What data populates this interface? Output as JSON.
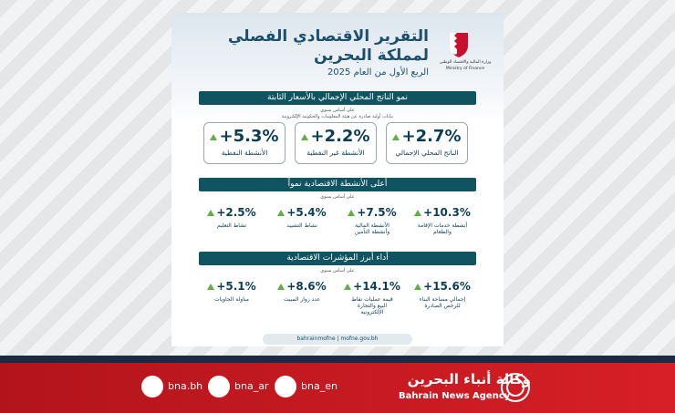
{
  "header": {
    "title_line1": "التقرير الاقتصادي الفصلي",
    "title_line2": "لمملكة البحرين",
    "subtitle": "الربع الأول من العام 2025",
    "ministry_ar": "وزارة المالية والاقتصاد الوطني",
    "ministry_en": "Ministry of Finance"
  },
  "sections": [
    {
      "title": "نمو الناتج المحلي الإجمالي بالأسعار الثابتة",
      "note": "على أساس سنوي",
      "source": "بيانات أولية صادرة عن هيئة المعلومات والحكومة الإلكترونية",
      "stats": [
        {
          "value": "+2.7%",
          "label": "الناتج المحلي الإجمالي"
        },
        {
          "value": "+2.2%",
          "label": "الأنشطة غير النفطية"
        },
        {
          "value": "+5.3%",
          "label": "الأنشطة النفطية"
        }
      ]
    },
    {
      "title": "أعلى الأنشطة الاقتصادية نمواً",
      "note": "على أساس سنوي",
      "stats": [
        {
          "value": "+10.3%",
          "label": "أنشطة خدمات الإقامة والطعام"
        },
        {
          "value": "+7.5%",
          "label": "الأنشطة المالية وأنشطة التأمين"
        },
        {
          "value": "+5.4%",
          "label": "نشاط التشييد"
        },
        {
          "value": "+2.5%",
          "label": "نشاط التعليم"
        }
      ]
    },
    {
      "title": "أداء أبرز المؤشرات الاقتصادية",
      "note": "على أساس سنوي",
      "stats": [
        {
          "value": "+15.6%",
          "label": "إجمالي مساحة البناء للرخص الصادرة"
        },
        {
          "value": "+14.1%",
          "label": "قيمة عمليات نقاط البيع والتجارة الإلكترونية"
        },
        {
          "value": "+8.6%",
          "label": "عدد زوار المبيت"
        },
        {
          "value": "+5.1%",
          "label": "مناولة الحاويات"
        }
      ]
    }
  ],
  "footer": {
    "social": "bahrainmofne | mofne.gov.bh"
  },
  "bar": {
    "handles": [
      "bna.bh",
      "bna_ar",
      "bna_en"
    ],
    "agency_ar": "وكالة أنباء البحرين",
    "agency_en": "Bahrain News Agency"
  }
}
